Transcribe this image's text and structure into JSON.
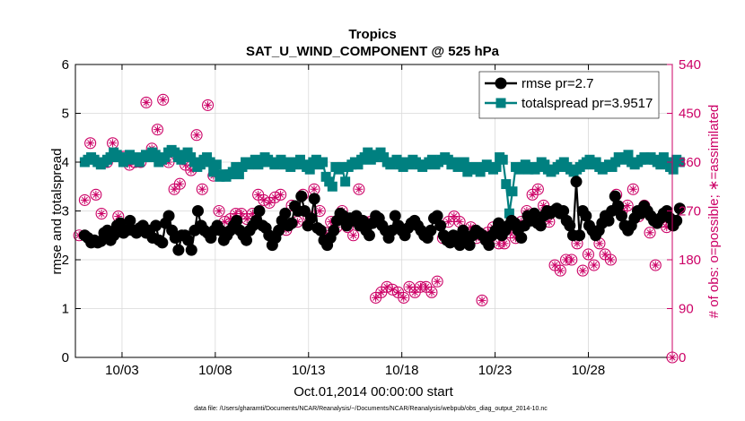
{
  "chart_data": {
    "type": "line",
    "title": "Tropics",
    "subtitle": "SAT_U_WIND_COMPONENT @ 525 hPa",
    "xlabel": "Oct.01,2014 00:00:00 start",
    "ylabel": "rmse and totalspread",
    "ylabel_right": "# of obs: o=possible; ∗=assimilated",
    "footnote": "data file: /Users/gharamti/Documents/NCAR/Reanalysis/~/Documents/NCAR/Reanalysis/webpub/obs_diag_output_2014-10.nc",
    "xlim": [
      0.5,
      32.5
    ],
    "ylim": [
      0,
      6
    ],
    "ylim_right": [
      0,
      540
    ],
    "x_ticks": [
      {
        "value": 3,
        "label": "10/03"
      },
      {
        "value": 8,
        "label": "10/08"
      },
      {
        "value": 13,
        "label": "10/13"
      },
      {
        "value": 18,
        "label": "10/18"
      },
      {
        "value": 23,
        "label": "10/23"
      },
      {
        "value": 28,
        "label": "10/28"
      }
    ],
    "y_ticks": [
      0,
      1,
      2,
      3,
      4,
      5,
      6
    ],
    "y_ticks_right": [
      0,
      90,
      180,
      270,
      360,
      450,
      540
    ],
    "colors": {
      "rmse": "#000000",
      "totalspread": "#008080",
      "obs": "#cc0066"
    },
    "legend_position": "top-right",
    "series": [
      {
        "name": "rmse pr=2.7",
        "axis": "left",
        "marker": "circle",
        "values": [
          2.5,
          2.45,
          2.35,
          2.4,
          2.35,
          2.38,
          2.55,
          2.6,
          2.4,
          2.5,
          2.7,
          2.75,
          2.55,
          2.6,
          2.8,
          2.6,
          2.55,
          2.65,
          2.7,
          2.55,
          2.6,
          2.45,
          2.7,
          2.4,
          2.35,
          2.75,
          2.9,
          2.6,
          2.45,
          2.2,
          2.5,
          2.5,
          2.4,
          2.2,
          2.6,
          3.0,
          2.7,
          2.6,
          2.55,
          2.45,
          2.6,
          2.7,
          2.6,
          2.4,
          2.5,
          2.6,
          2.7,
          2.8,
          2.6,
          2.5,
          2.4,
          2.6,
          2.7,
          2.8,
          3.0,
          2.7,
          2.65,
          2.5,
          2.3,
          2.45,
          2.6,
          2.8,
          2.95,
          2.7,
          2.75,
          3.1,
          3.0,
          3.3,
          3.0,
          2.7,
          2.85,
          3.25,
          2.65,
          2.6,
          2.4,
          2.3,
          2.45,
          2.6,
          2.8,
          2.95,
          2.9,
          2.7,
          2.85,
          2.8,
          2.9,
          2.7,
          2.8,
          2.6,
          2.5,
          2.75,
          2.9,
          2.85,
          2.7,
          2.6,
          2.45,
          2.6,
          2.9,
          2.7,
          2.6,
          2.5,
          2.65,
          2.75,
          2.8,
          2.7,
          2.6,
          2.5,
          2.45,
          2.6,
          2.85,
          2.9,
          2.7,
          2.5,
          2.4,
          2.35,
          2.5,
          2.45,
          2.3,
          2.6,
          2.4,
          2.3,
          2.5,
          2.6,
          2.55,
          2.5,
          2.4,
          2.3,
          2.5,
          2.6,
          2.75,
          2.5,
          2.6,
          2.7,
          2.8,
          2.75,
          2.6,
          2.45,
          2.7,
          2.9,
          2.8,
          2.95,
          2.75,
          2.7,
          2.9,
          3.0,
          2.95,
          3.0,
          3.05,
          2.95,
          3.0,
          2.8,
          2.7,
          2.5,
          3.6,
          2.5,
          3.0,
          2.9,
          2.7,
          2.6,
          2.5,
          2.6,
          2.75,
          2.9,
          2.8,
          3.0,
          3.3,
          3.1,
          2.9,
          2.7,
          2.6,
          2.7,
          2.85,
          3.0,
          2.95,
          3.1,
          3.0,
          2.9,
          2.8,
          2.75,
          2.85,
          2.95,
          3.0,
          2.85,
          2.7,
          2.8,
          3.05
        ]
      },
      {
        "name": "totalspread pr=3.9517",
        "axis": "left",
        "marker": "square",
        "values": [
          4.0,
          4.05,
          4.1,
          4.05,
          4.0,
          3.95,
          4.0,
          4.05,
          4.1,
          4.2,
          4.15,
          4.1,
          4.0,
          4.05,
          4.15,
          4.1,
          4.05,
          4.0,
          4.1,
          4.15,
          4.1,
          4.2,
          4.15,
          4.0,
          4.05,
          4.1,
          4.2,
          4.25,
          4.2,
          4.1,
          4.05,
          4.15,
          4.2,
          4.1,
          4.0,
          3.9,
          3.95,
          4.05,
          4.1,
          4.0,
          3.8,
          3.95,
          3.7,
          3.75,
          3.7,
          3.75,
          3.8,
          3.9,
          3.75,
          3.9,
          4.0,
          3.95,
          4.0,
          4.05,
          3.95,
          4.0,
          4.1,
          4.05,
          4.0,
          3.95,
          4.0,
          4.05,
          3.95,
          4.0,
          3.9,
          3.95,
          4.0,
          4.05,
          3.95,
          3.9,
          3.85,
          4.0,
          4.05,
          3.95,
          4.0,
          3.7,
          3.6,
          3.5,
          3.9,
          3.85,
          3.9,
          3.6,
          3.9,
          3.95,
          4.0,
          3.95,
          4.05,
          4.1,
          4.2,
          4.05,
          4.1,
          4.15,
          4.2,
          4.1,
          4.0,
          3.95,
          4.0,
          4.05,
          3.95,
          3.9,
          4.0,
          3.95,
          4.05,
          4.0,
          3.95,
          3.9,
          3.95,
          4.0,
          4.05,
          3.95,
          4.0,
          4.05,
          4.1,
          4.05,
          3.95,
          4.0,
          3.9,
          3.95,
          4.0,
          3.8,
          3.85,
          3.9,
          3.85,
          3.8,
          3.9,
          3.95,
          3.9,
          3.85,
          3.9,
          4.1,
          4.05,
          3.55,
          2.95,
          3.4,
          3.9,
          3.85,
          3.9,
          3.95,
          3.85,
          3.9,
          3.85,
          3.9,
          4.0,
          3.95,
          3.85,
          3.8,
          3.85,
          3.9,
          3.95,
          4.0,
          3.9,
          3.85,
          3.8,
          3.85,
          3.9,
          3.95,
          4.0,
          4.05,
          3.95,
          4.0,
          3.9,
          3.85,
          3.9,
          3.95,
          3.9,
          4.0,
          4.1,
          4.05,
          4.1,
          4.15,
          4.0,
          3.95,
          4.0,
          4.05,
          4.1,
          4.05,
          4.1,
          4.05,
          4.0,
          3.95,
          4.1,
          4.0,
          3.9,
          3.85,
          4.05,
          4.0
        ]
      },
      {
        "name": "obs possible",
        "axis": "right",
        "marker": "circle-open",
        "x": [
          0.7,
          1.0,
          1.3,
          1.6,
          1.9,
          2.2,
          2.5,
          2.8,
          3.1,
          3.4,
          3.7,
          4.0,
          4.3,
          4.6,
          4.9,
          5.2,
          5.5,
          5.8,
          6.1,
          6.4,
          6.7,
          7.0,
          7.3,
          7.6,
          7.9,
          8.2,
          8.5,
          8.8,
          9.1,
          9.4,
          9.7,
          10.0,
          10.3,
          10.6,
          10.9,
          11.2,
          11.5,
          11.8,
          12.1,
          12.4,
          12.7,
          13.0,
          13.3,
          13.6,
          13.9,
          14.2,
          14.5,
          14.8,
          15.1,
          15.4,
          15.7,
          16.0,
          16.3,
          16.6,
          16.9,
          17.2,
          17.5,
          17.8,
          18.1,
          18.4,
          18.7,
          19.0,
          19.3,
          19.6,
          19.9,
          20.2,
          20.5,
          20.8,
          21.1,
          21.4,
          21.7,
          22.0,
          22.3,
          22.6,
          22.9,
          23.2,
          23.5,
          23.8,
          24.1,
          24.4,
          24.7,
          25.0,
          25.3,
          25.6,
          25.9,
          26.2,
          26.5,
          26.8,
          27.1,
          27.4,
          27.7,
          28.0,
          28.3,
          28.6,
          28.9,
          29.2,
          29.5,
          29.8,
          30.1,
          30.4,
          30.7,
          31.0,
          31.3,
          31.6,
          31.9,
          32.2,
          32.5
        ],
        "values": [
          225,
          290,
          395,
          300,
          265,
          360,
          395,
          260,
          370,
          355,
          360,
          360,
          470,
          385,
          420,
          475,
          360,
          310,
          320,
          355,
          345,
          410,
          310,
          465,
          335,
          270,
          250,
          255,
          265,
          265,
          255,
          265,
          300,
          290,
          285,
          295,
          300,
          235,
          280,
          250,
          300,
          260,
          310,
          270,
          230,
          250,
          240,
          270,
          240,
          225,
          310,
          250,
          250,
          110,
          120,
          130,
          125,
          120,
          110,
          130,
          120,
          130,
          130,
          120,
          140,
          220,
          250,
          260,
          250,
          230,
          240,
          220,
          105,
          230,
          240,
          210,
          210,
          230,
          220,
          250,
          270,
          300,
          310,
          280,
          250,
          170,
          160,
          180,
          180,
          210,
          160,
          190,
          170,
          210,
          190,
          180,
          300,
          270,
          280,
          310,
          260,
          280,
          230,
          170,
          250,
          240,
          0
        ]
      },
      {
        "name": "obs assimilated",
        "axis": "right",
        "marker": "asterisk",
        "x": [
          0.7,
          1.0,
          1.3,
          1.6,
          1.9,
          2.2,
          2.5,
          2.8,
          3.1,
          3.4,
          3.7,
          4.0,
          4.3,
          4.6,
          4.9,
          5.2,
          5.5,
          5.8,
          6.1,
          6.4,
          6.7,
          7.0,
          7.3,
          7.6,
          7.9,
          8.2,
          8.5,
          8.8,
          9.1,
          9.4,
          9.7,
          10.0,
          10.3,
          10.6,
          10.9,
          11.2,
          11.5,
          11.8,
          12.1,
          12.4,
          12.7,
          13.0,
          13.3,
          13.6,
          13.9,
          14.2,
          14.5,
          14.8,
          15.1,
          15.4,
          15.7,
          16.0,
          16.3,
          16.6,
          16.9,
          17.2,
          17.5,
          17.8,
          18.1,
          18.4,
          18.7,
          19.0,
          19.3,
          19.6,
          19.9,
          20.2,
          20.5,
          20.8,
          21.1,
          21.4,
          21.7,
          22.0,
          22.3,
          22.6,
          22.9,
          23.2,
          23.5,
          23.8,
          24.1,
          24.4,
          24.7,
          25.0,
          25.3,
          25.6,
          25.9,
          26.2,
          26.5,
          26.8,
          27.1,
          27.4,
          27.7,
          28.0,
          28.3,
          28.6,
          28.9,
          29.2,
          29.5,
          29.8,
          30.1,
          30.4,
          30.7,
          31.0,
          31.3,
          31.6,
          31.9,
          32.2,
          32.5
        ],
        "values": [
          225,
          290,
          395,
          300,
          265,
          360,
          395,
          260,
          370,
          355,
          360,
          360,
          470,
          385,
          420,
          475,
          360,
          310,
          320,
          355,
          345,
          410,
          310,
          465,
          335,
          270,
          250,
          255,
          265,
          265,
          255,
          265,
          300,
          290,
          285,
          295,
          300,
          235,
          280,
          250,
          300,
          260,
          310,
          270,
          230,
          250,
          240,
          270,
          240,
          225,
          310,
          250,
          250,
          110,
          120,
          130,
          125,
          120,
          110,
          130,
          120,
          130,
          130,
          120,
          140,
          220,
          250,
          260,
          250,
          230,
          240,
          220,
          105,
          230,
          240,
          210,
          210,
          230,
          220,
          250,
          270,
          300,
          310,
          280,
          250,
          170,
          160,
          180,
          180,
          210,
          160,
          190,
          170,
          210,
          190,
          180,
          300,
          270,
          280,
          310,
          260,
          280,
          230,
          170,
          250,
          240,
          0
        ]
      }
    ]
  }
}
